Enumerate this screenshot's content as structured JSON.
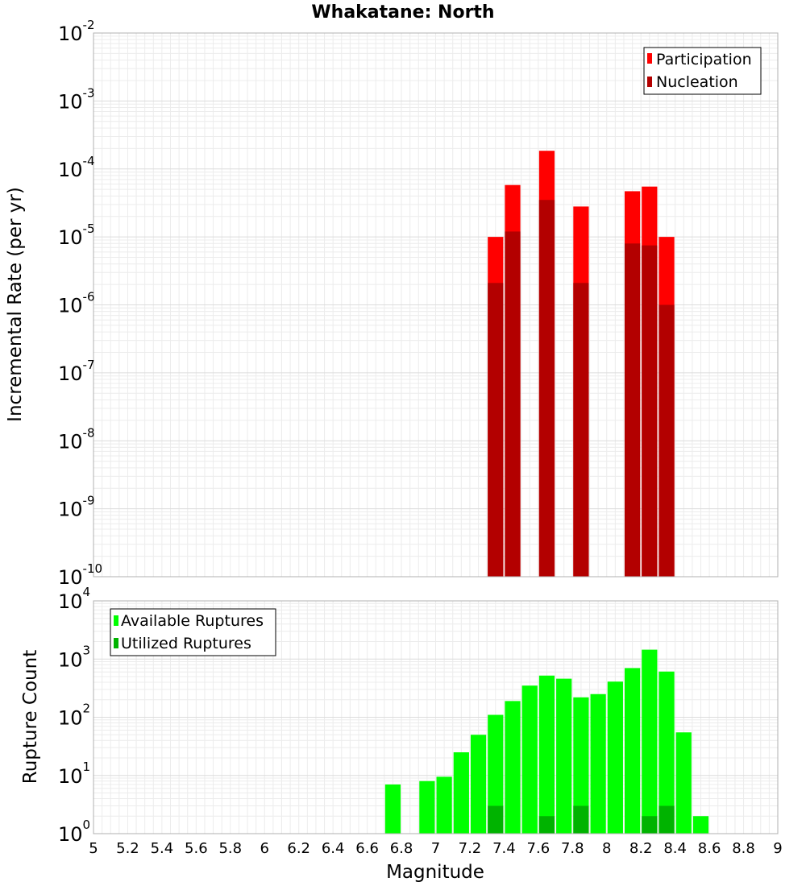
{
  "chart_data": [
    {
      "type": "bar",
      "title": "Whakatane: North",
      "xlabel": "Magnitude",
      "ylabel": "Incremental Rate (per yr)",
      "yscale": "log",
      "ylim_exp": [
        -10,
        -2
      ],
      "xlim": [
        5,
        9
      ],
      "bin_width": 0.1,
      "grid": true,
      "legend_position": "top-right",
      "series": [
        {
          "name": "Participation",
          "color": "#ff0000",
          "x": [
            7.35,
            7.45,
            7.65,
            7.85,
            8.15,
            8.25,
            8.35
          ],
          "values": [
            1e-05,
            5.8e-05,
            0.000185,
            2.8e-05,
            4.7e-05,
            5.5e-05,
            1e-05
          ]
        },
        {
          "name": "Nucleation",
          "color": "#b30000",
          "x": [
            7.35,
            7.45,
            7.65,
            7.85,
            8.15,
            8.25,
            8.35
          ],
          "values": [
            2.1e-06,
            1.2e-05,
            3.5e-05,
            2.1e-06,
            8e-06,
            7.5e-06,
            1e-06
          ]
        }
      ]
    },
    {
      "type": "bar",
      "xlabel": "Magnitude",
      "ylabel": "Rupture Count",
      "yscale": "log",
      "ylim_exp": [
        0,
        4
      ],
      "xlim": [
        5,
        9
      ],
      "bin_width": 0.1,
      "grid": true,
      "legend_position": "top-left",
      "series": [
        {
          "name": "Available Ruptures",
          "color": "#00ff00",
          "x": [
            6.75,
            6.95,
            7.05,
            7.15,
            7.25,
            7.35,
            7.45,
            7.55,
            7.65,
            7.75,
            7.85,
            7.95,
            8.05,
            8.15,
            8.25,
            8.35,
            8.45,
            8.55
          ],
          "values": [
            7,
            8,
            9.5,
            25,
            50,
            110,
            190,
            350,
            520,
            460,
            220,
            250,
            410,
            700,
            1450,
            610,
            55,
            2
          ]
        },
        {
          "name": "Utilized Ruptures",
          "color": "#00b300",
          "x": [
            7.35,
            7.45,
            7.65,
            7.85,
            8.15,
            8.25,
            8.35
          ],
          "values": [
            3,
            1,
            2,
            3,
            1,
            2,
            3
          ]
        }
      ]
    }
  ]
}
